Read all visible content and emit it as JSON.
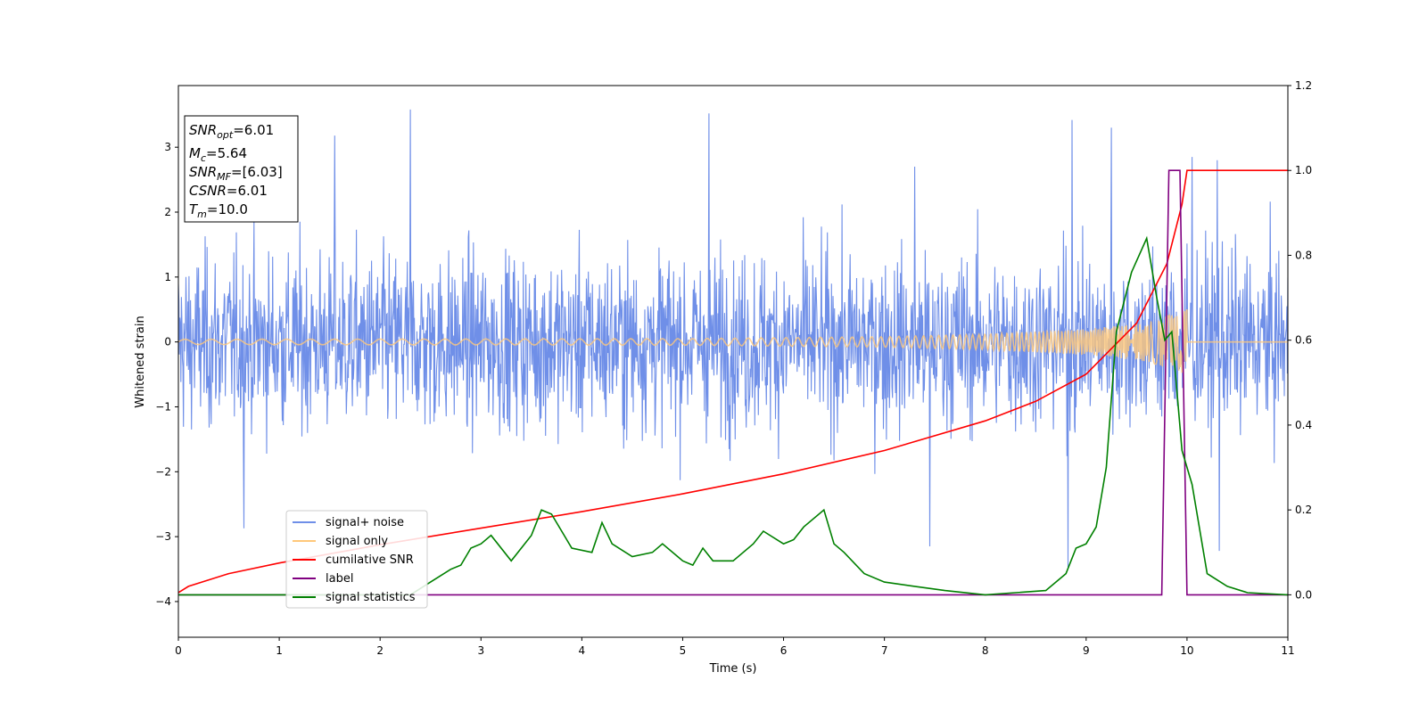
{
  "chart_data": {
    "type": "line",
    "xlabel": "Time (s)",
    "ylabel": "Whitened strain",
    "xlim": [
      0,
      11
    ],
    "ylim_left": [
      -4.55,
      3.95
    ],
    "ylim_right": [
      -0.1,
      1.2
    ],
    "x_ticks": [
      "0",
      "1",
      "2",
      "3",
      "4",
      "5",
      "6",
      "7",
      "8",
      "9",
      "10",
      "11"
    ],
    "y_ticks_left": [
      "−4",
      "−3",
      "−2",
      "−1",
      "0",
      "1",
      "2",
      "3"
    ],
    "y_ticks_right": [
      "0.0",
      "0.2",
      "0.4",
      "0.6",
      "0.8",
      "1.0",
      "1.2"
    ],
    "grid": false,
    "legend_position": "lower-left",
    "info_box": {
      "snr_opt": {
        "base": "SNR",
        "sub": "opt",
        "value": "=6.01"
      },
      "mc": {
        "base": "M",
        "sub": "c",
        "value": "=5.64"
      },
      "snr_mf": {
        "base": "SNR",
        "sub": "MF",
        "value": "=[6.03]"
      },
      "csnr": {
        "base": "CSNR",
        "value": "=6.01"
      },
      "tm": {
        "base": "T",
        "sub": "m",
        "value": "=10.0"
      }
    },
    "series": [
      {
        "name": "signal+ noise",
        "axis": "left",
        "color": "#6f8fe8",
        "kind": "noise_envelope",
        "typical_amplitude": 1.6,
        "peaks": [
          [
            2.3,
            3.58
          ],
          [
            5.26,
            3.52
          ],
          [
            8.86,
            3.42
          ],
          [
            9.25,
            3.3
          ],
          [
            1.55,
            3.18
          ],
          [
            10.05,
            2.85
          ],
          [
            10.3,
            2.8
          ],
          [
            7.3,
            2.7
          ],
          [
            0.65,
            -2.87
          ],
          [
            7.45,
            -3.15
          ],
          [
            8.82,
            -3.47
          ],
          [
            10.32,
            -3.22
          ]
        ]
      },
      {
        "name": "signal only",
        "axis": "left",
        "color": "#ffc87a",
        "kind": "chirp",
        "envelope": [
          [
            0,
            0.04
          ],
          [
            5,
            0.05
          ],
          [
            7,
            0.08
          ],
          [
            8,
            0.12
          ],
          [
            9,
            0.2
          ],
          [
            9.6,
            0.3
          ],
          [
            10,
            0.5
          ]
        ],
        "end_time": 10.0
      },
      {
        "name": "cumilative SNR",
        "axis": "right",
        "color": "#ff0000",
        "points": [
          [
            0,
            0.005
          ],
          [
            0.1,
            0.02
          ],
          [
            0.5,
            0.05
          ],
          [
            1,
            0.075
          ],
          [
            2,
            0.118
          ],
          [
            3,
            0.157
          ],
          [
            4,
            0.196
          ],
          [
            5,
            0.238
          ],
          [
            6,
            0.285
          ],
          [
            7,
            0.34
          ],
          [
            8,
            0.41
          ],
          [
            8.5,
            0.456
          ],
          [
            9,
            0.52
          ],
          [
            9.5,
            0.64
          ],
          [
            9.8,
            0.78
          ],
          [
            9.95,
            0.92
          ],
          [
            10,
            1.0
          ],
          [
            11,
            1.0
          ]
        ]
      },
      {
        "name": "label",
        "axis": "right",
        "color": "#800080",
        "points": [
          [
            0,
            0
          ],
          [
            9.75,
            0
          ],
          [
            9.82,
            1.0
          ],
          [
            9.93,
            1.0
          ],
          [
            10.0,
            0
          ],
          [
            11,
            0
          ]
        ]
      },
      {
        "name": "signal statistics",
        "axis": "right",
        "color": "#008000",
        "points": [
          [
            0,
            0.0
          ],
          [
            2.3,
            0.0
          ],
          [
            2.5,
            0.03
          ],
          [
            2.7,
            0.06
          ],
          [
            2.8,
            0.07
          ],
          [
            2.9,
            0.11
          ],
          [
            3.0,
            0.12
          ],
          [
            3.1,
            0.14
          ],
          [
            3.3,
            0.08
          ],
          [
            3.5,
            0.14
          ],
          [
            3.6,
            0.2
          ],
          [
            3.7,
            0.19
          ],
          [
            3.9,
            0.11
          ],
          [
            4.1,
            0.1
          ],
          [
            4.2,
            0.17
          ],
          [
            4.3,
            0.12
          ],
          [
            4.5,
            0.09
          ],
          [
            4.7,
            0.1
          ],
          [
            4.8,
            0.12
          ],
          [
            5.0,
            0.08
          ],
          [
            5.1,
            0.07
          ],
          [
            5.2,
            0.11
          ],
          [
            5.3,
            0.08
          ],
          [
            5.5,
            0.08
          ],
          [
            5.7,
            0.12
          ],
          [
            5.8,
            0.15
          ],
          [
            6.0,
            0.12
          ],
          [
            6.1,
            0.13
          ],
          [
            6.2,
            0.16
          ],
          [
            6.4,
            0.2
          ],
          [
            6.5,
            0.12
          ],
          [
            6.6,
            0.1
          ],
          [
            6.8,
            0.05
          ],
          [
            7.0,
            0.03
          ],
          [
            7.3,
            0.02
          ],
          [
            7.6,
            0.01
          ],
          [
            8.0,
            0.0
          ],
          [
            8.3,
            0.005
          ],
          [
            8.6,
            0.01
          ],
          [
            8.8,
            0.05
          ],
          [
            8.9,
            0.11
          ],
          [
            9.0,
            0.12
          ],
          [
            9.1,
            0.16
          ],
          [
            9.2,
            0.3
          ],
          [
            9.3,
            0.62
          ],
          [
            9.45,
            0.76
          ],
          [
            9.6,
            0.84
          ],
          [
            9.7,
            0.7
          ],
          [
            9.78,
            0.6
          ],
          [
            9.85,
            0.62
          ],
          [
            9.95,
            0.34
          ],
          [
            10.05,
            0.26
          ],
          [
            10.2,
            0.05
          ],
          [
            10.4,
            0.02
          ],
          [
            10.6,
            0.005
          ],
          [
            11,
            0.0
          ]
        ]
      }
    ]
  }
}
